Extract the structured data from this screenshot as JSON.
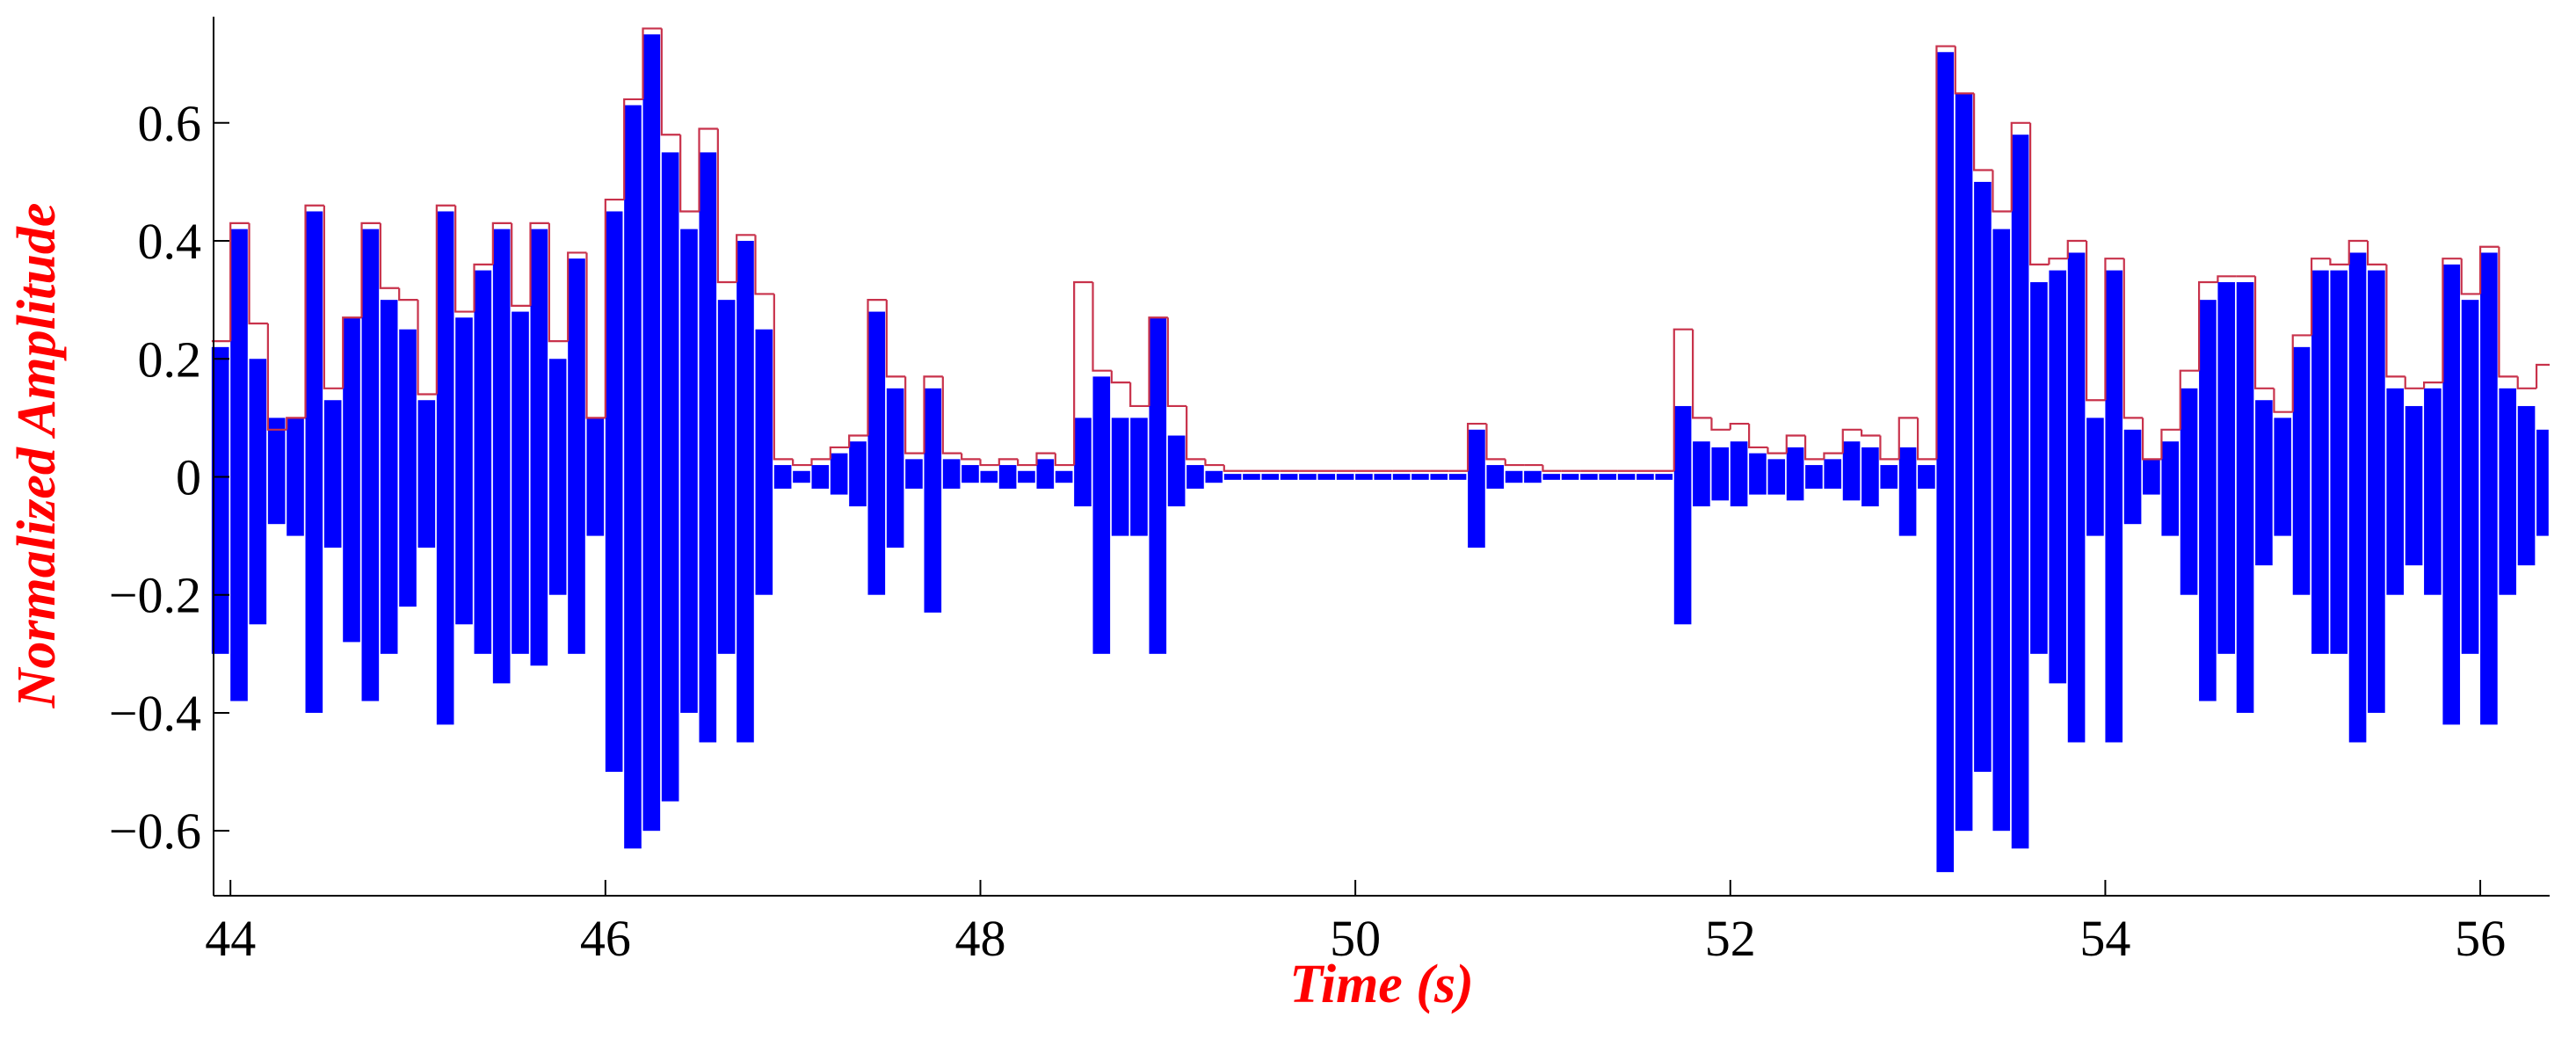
{
  "chart_data": {
    "type": "waveform",
    "xlabel": "Time (s)",
    "ylabel": "Normalized Amplitude",
    "xlim": [
      43.91,
      56.37
    ],
    "ylim": [
      -0.71,
      0.78
    ],
    "xticks": [
      44,
      46,
      48,
      50,
      52,
      54,
      56
    ],
    "yticks": [
      {
        "value": -0.6,
        "label": "−0.6"
      },
      {
        "value": -0.4,
        "label": "−0.4"
      },
      {
        "value": -0.2,
        "label": "−0.2"
      },
      0,
      0.2,
      0.4,
      0.6
    ],
    "x": [
      43.9,
      44.0,
      44.1,
      44.2,
      44.3,
      44.4,
      44.5,
      44.6,
      44.7,
      44.8,
      44.9,
      45.0,
      45.1,
      45.2,
      45.3,
      45.4,
      45.5,
      45.6,
      45.7,
      45.8,
      45.9,
      46.0,
      46.1,
      46.2,
      46.3,
      46.4,
      46.5,
      46.6,
      46.7,
      46.8,
      46.9,
      47.0,
      47.1,
      47.2,
      47.3,
      47.4,
      47.5,
      47.6,
      47.7,
      47.8,
      47.9,
      48.0,
      48.1,
      48.2,
      48.3,
      48.4,
      48.5,
      48.6,
      48.7,
      48.8,
      48.9,
      49.0,
      49.1,
      49.2,
      49.3,
      49.4,
      49.5,
      49.6,
      49.7,
      49.8,
      49.9,
      50.0,
      50.1,
      50.2,
      50.3,
      50.4,
      50.5,
      50.6,
      50.7,
      50.8,
      50.9,
      51.0,
      51.1,
      51.2,
      51.3,
      51.4,
      51.5,
      51.6,
      51.7,
      51.8,
      51.9,
      52.0,
      52.1,
      52.2,
      52.3,
      52.4,
      52.5,
      52.6,
      52.7,
      52.8,
      52.9,
      53.0,
      53.1,
      53.2,
      53.3,
      53.4,
      53.5,
      53.6,
      53.7,
      53.8,
      53.9,
      54.0,
      54.1,
      54.2,
      54.3,
      54.4,
      54.5,
      54.6,
      54.7,
      54.8,
      54.9,
      55.0,
      55.1,
      55.2,
      55.3,
      55.4,
      55.5,
      55.6,
      55.7,
      55.8,
      55.9,
      56.0,
      56.1,
      56.2,
      56.3
    ],
    "series": [
      {
        "style": "band",
        "color": "#0000ff",
        "high": [
          0.22,
          0.42,
          0.2,
          0.1,
          0.1,
          0.45,
          0.13,
          0.27,
          0.42,
          0.3,
          0.25,
          0.13,
          0.45,
          0.27,
          0.35,
          0.42,
          0.28,
          0.42,
          0.2,
          0.37,
          0.1,
          0.45,
          0.63,
          0.75,
          0.55,
          0.42,
          0.55,
          0.3,
          0.4,
          0.25,
          0.02,
          0.01,
          0.02,
          0.04,
          0.06,
          0.28,
          0.15,
          0.03,
          0.15,
          0.03,
          0.02,
          0.01,
          0.02,
          0.01,
          0.03,
          0.01,
          0.1,
          0.17,
          0.1,
          0.1,
          0.27,
          0.07,
          0.02,
          0.01,
          0.005,
          0.005,
          0.005,
          0.005,
          0.005,
          0.005,
          0.005,
          0.005,
          0.005,
          0.005,
          0.005,
          0.005,
          0.005,
          0.08,
          0.02,
          0.01,
          0.01,
          0.005,
          0.005,
          0.005,
          0.005,
          0.005,
          0.005,
          0.005,
          0.12,
          0.06,
          0.05,
          0.06,
          0.04,
          0.03,
          0.05,
          0.02,
          0.03,
          0.06,
          0.05,
          0.02,
          0.05,
          0.02,
          0.72,
          0.65,
          0.5,
          0.42,
          0.58,
          0.33,
          0.35,
          0.38,
          0.1,
          0.35,
          0.08,
          0.03,
          0.06,
          0.15,
          0.3,
          0.33,
          0.33,
          0.13,
          0.1,
          0.22,
          0.35,
          0.35,
          0.38,
          0.35,
          0.15,
          0.12,
          0.15,
          0.36,
          0.3,
          0.38,
          0.15,
          0.12,
          0.08
        ],
        "low": [
          -0.3,
          -0.38,
          -0.25,
          -0.08,
          -0.1,
          -0.4,
          -0.12,
          -0.28,
          -0.38,
          -0.3,
          -0.22,
          -0.12,
          -0.42,
          -0.25,
          -0.3,
          -0.35,
          -0.3,
          -0.32,
          -0.2,
          -0.3,
          -0.1,
          -0.5,
          -0.63,
          -0.6,
          -0.55,
          -0.4,
          -0.45,
          -0.3,
          -0.45,
          -0.2,
          -0.02,
          -0.01,
          -0.02,
          -0.03,
          -0.05,
          -0.2,
          -0.12,
          -0.02,
          -0.23,
          -0.02,
          -0.01,
          -0.01,
          -0.02,
          -0.01,
          -0.02,
          -0.01,
          -0.05,
          -0.3,
          -0.1,
          -0.1,
          -0.3,
          -0.05,
          -0.02,
          -0.01,
          -0.005,
          -0.005,
          -0.005,
          -0.005,
          -0.005,
          -0.005,
          -0.005,
          -0.005,
          -0.005,
          -0.005,
          -0.005,
          -0.005,
          -0.005,
          -0.12,
          -0.02,
          -0.01,
          -0.01,
          -0.005,
          -0.005,
          -0.005,
          -0.005,
          -0.005,
          -0.005,
          -0.005,
          -0.25,
          -0.05,
          -0.04,
          -0.05,
          -0.03,
          -0.03,
          -0.04,
          -0.02,
          -0.02,
          -0.04,
          -0.05,
          -0.02,
          -0.1,
          -0.02,
          -0.67,
          -0.6,
          -0.5,
          -0.6,
          -0.63,
          -0.3,
          -0.35,
          -0.45,
          -0.1,
          -0.45,
          -0.08,
          -0.03,
          -0.1,
          -0.2,
          -0.38,
          -0.3,
          -0.4,
          -0.15,
          -0.1,
          -0.2,
          -0.3,
          -0.3,
          -0.45,
          -0.4,
          -0.2,
          -0.15,
          -0.2,
          -0.42,
          -0.3,
          -0.42,
          -0.2,
          -0.15,
          -0.1
        ]
      },
      {
        "style": "step",
        "color": "#c8324b",
        "values": [
          0.23,
          0.43,
          0.26,
          0.08,
          0.1,
          0.46,
          0.15,
          0.27,
          0.43,
          0.32,
          0.3,
          0.14,
          0.46,
          0.28,
          0.36,
          0.43,
          0.29,
          0.43,
          0.23,
          0.38,
          0.1,
          0.47,
          0.64,
          0.76,
          0.58,
          0.45,
          0.59,
          0.33,
          0.41,
          0.31,
          0.03,
          0.02,
          0.03,
          0.05,
          0.07,
          0.3,
          0.17,
          0.04,
          0.17,
          0.04,
          0.03,
          0.02,
          0.03,
          0.02,
          0.04,
          0.02,
          0.33,
          0.18,
          0.16,
          0.12,
          0.27,
          0.12,
          0.03,
          0.02,
          0.01,
          0.01,
          0.01,
          0.01,
          0.01,
          0.01,
          0.01,
          0.01,
          0.01,
          0.01,
          0.01,
          0.01,
          0.01,
          0.09,
          0.03,
          0.02,
          0.02,
          0.01,
          0.01,
          0.01,
          0.01,
          0.01,
          0.01,
          0.01,
          0.25,
          0.1,
          0.08,
          0.09,
          0.05,
          0.04,
          0.07,
          0.03,
          0.04,
          0.08,
          0.07,
          0.03,
          0.1,
          0.03,
          0.73,
          0.65,
          0.52,
          0.45,
          0.6,
          0.36,
          0.37,
          0.4,
          0.13,
          0.37,
          0.1,
          0.03,
          0.08,
          0.18,
          0.33,
          0.34,
          0.34,
          0.15,
          0.11,
          0.24,
          0.37,
          0.36,
          0.4,
          0.36,
          0.17,
          0.15,
          0.16,
          0.37,
          0.31,
          0.39,
          0.17,
          0.15,
          0.19
        ]
      }
    ]
  }
}
